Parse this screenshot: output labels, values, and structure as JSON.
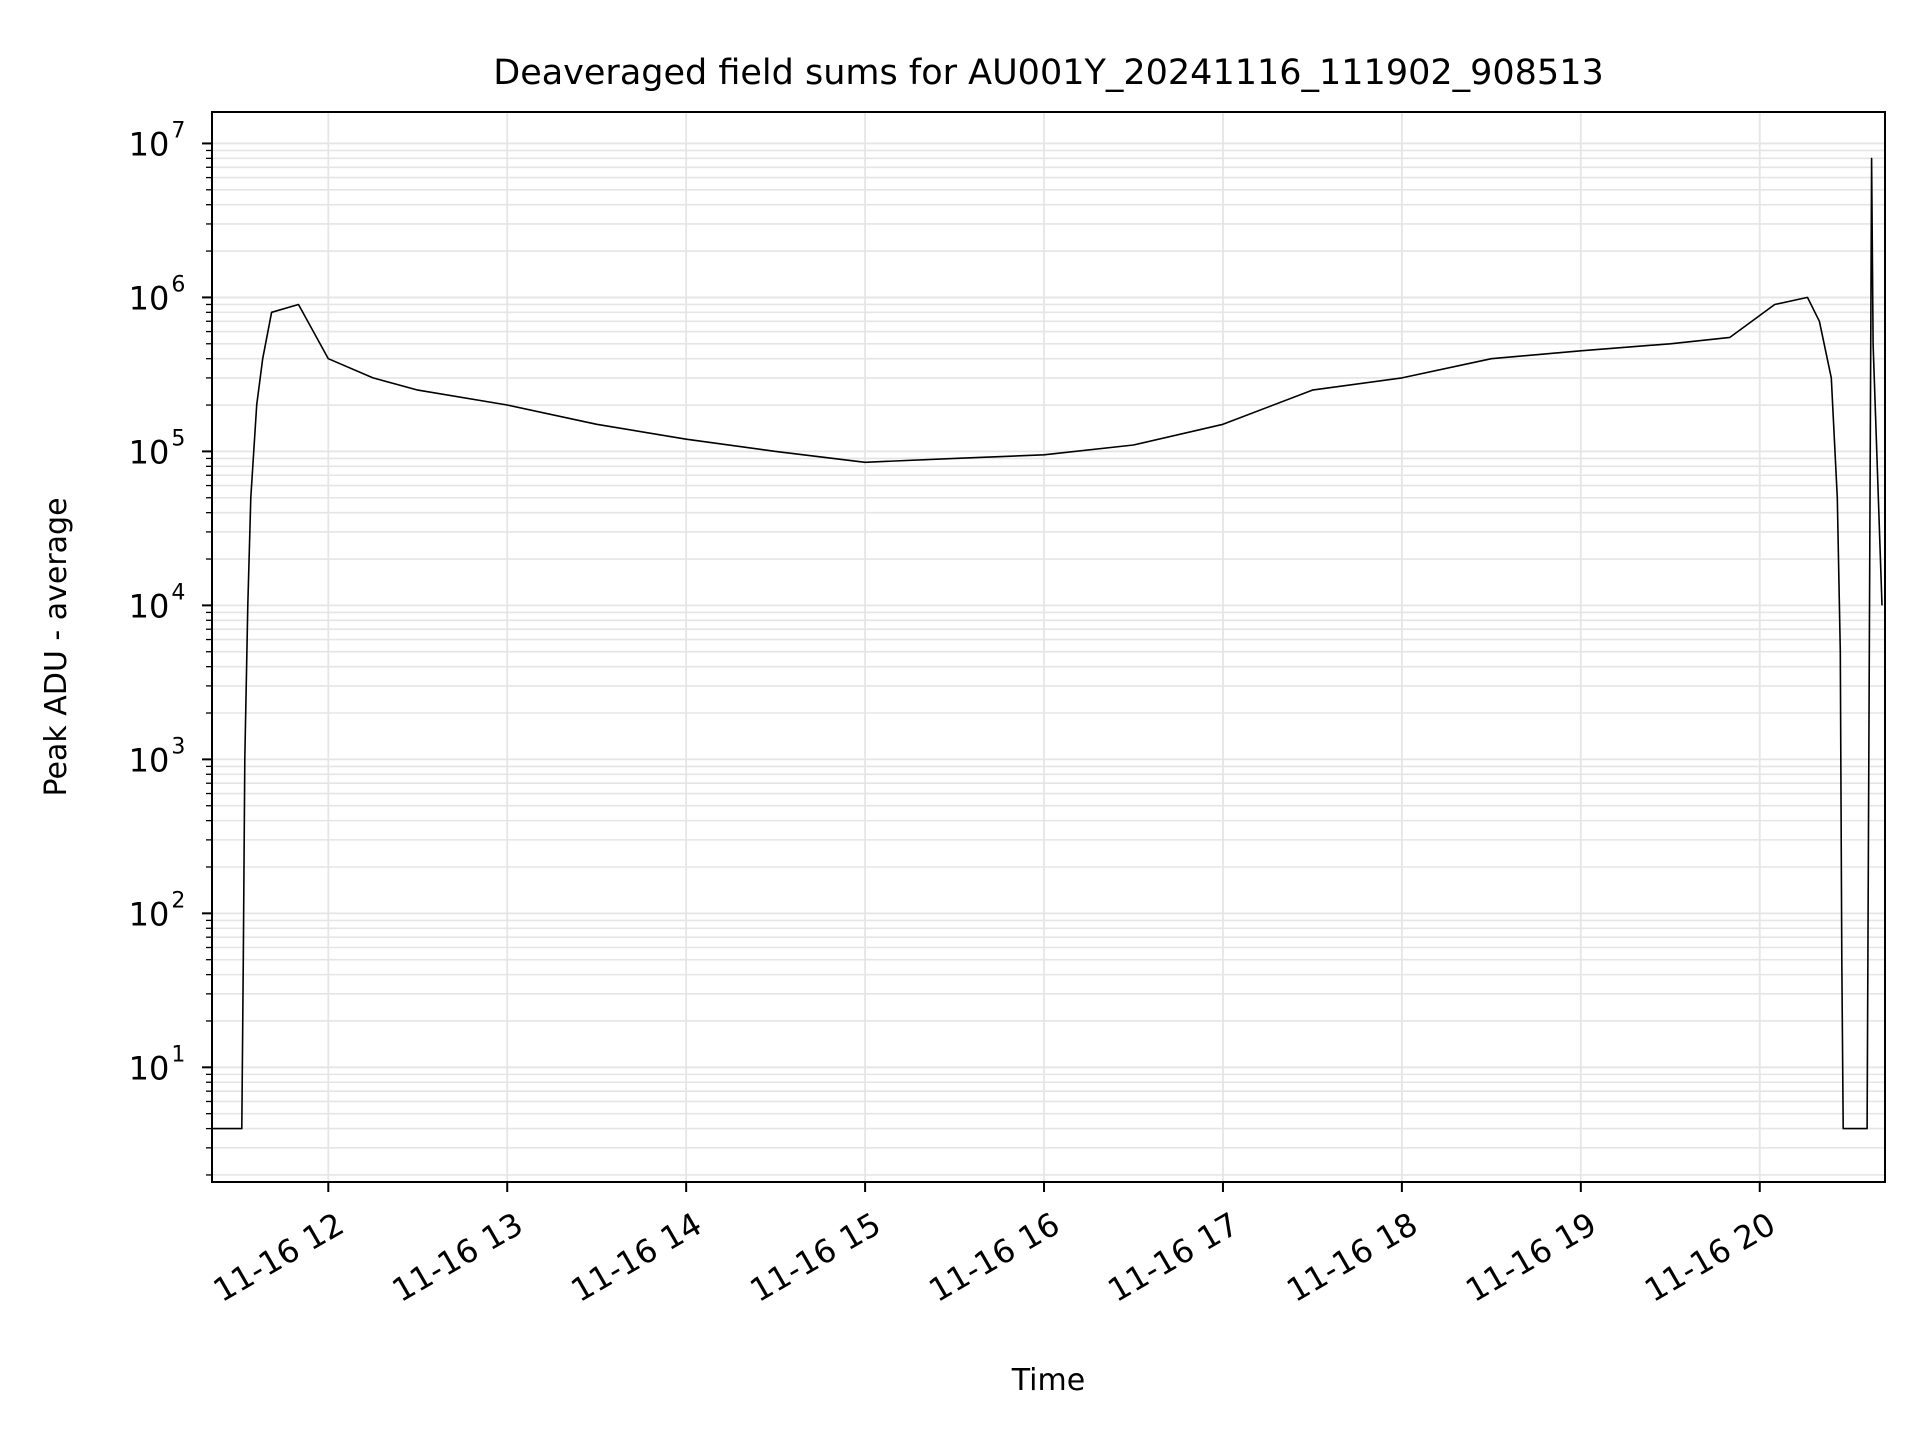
{
  "chart_data": {
    "type": "line",
    "title": "Deaveraged field sums for AU001Y_20241116_111902_908513",
    "xlabel": "Time",
    "ylabel": "Peak ADU - average",
    "yscale": "log",
    "ylim": [
      1.8,
      16000000
    ],
    "xlim": [
      "2024-11-16T11:21:00",
      "2024-11-16T20:42:00"
    ],
    "grid": true,
    "grid_color": "#e5e5e5",
    "line_color": "#000000",
    "x_ticks": [
      {
        "t": "2024-11-16T12:00:00",
        "label": "11-16 12"
      },
      {
        "t": "2024-11-16T13:00:00",
        "label": "11-16 13"
      },
      {
        "t": "2024-11-16T14:00:00",
        "label": "11-16 14"
      },
      {
        "t": "2024-11-16T15:00:00",
        "label": "11-16 15"
      },
      {
        "t": "2024-11-16T16:00:00",
        "label": "11-16 16"
      },
      {
        "t": "2024-11-16T17:00:00",
        "label": "11-16 17"
      },
      {
        "t": "2024-11-16T18:00:00",
        "label": "11-16 18"
      },
      {
        "t": "2024-11-16T19:00:00",
        "label": "11-16 19"
      },
      {
        "t": "2024-11-16T20:00:00",
        "label": "11-16 20"
      }
    ],
    "y_ticks": [
      {
        "value": 10,
        "base": "10",
        "exp": "1"
      },
      {
        "value": 100,
        "base": "10",
        "exp": "2"
      },
      {
        "value": 1000,
        "base": "10",
        "exp": "3"
      },
      {
        "value": 10000,
        "base": "10",
        "exp": "4"
      },
      {
        "value": 100000,
        "base": "10",
        "exp": "5"
      },
      {
        "value": 1000000,
        "base": "10",
        "exp": "6"
      },
      {
        "value": 10000000,
        "base": "10",
        "exp": "7"
      }
    ],
    "series": [
      {
        "points": [
          [
            "2024-11-16T11:21:00",
            4
          ],
          [
            "2024-11-16T11:31:00",
            4
          ],
          [
            "2024-11-16T11:31:30",
            50
          ],
          [
            "2024-11-16T11:32:00",
            1000
          ],
          [
            "2024-11-16T11:33:00",
            10000
          ],
          [
            "2024-11-16T11:34:00",
            50000
          ],
          [
            "2024-11-16T11:36:00",
            200000
          ],
          [
            "2024-11-16T11:38:00",
            400000
          ],
          [
            "2024-11-16T11:41:00",
            800000
          ],
          [
            "2024-11-16T11:50:00",
            900000
          ],
          [
            "2024-11-16T12:00:00",
            400000
          ],
          [
            "2024-11-16T12:15:00",
            300000
          ],
          [
            "2024-11-16T12:30:00",
            250000
          ],
          [
            "2024-11-16T13:00:00",
            200000
          ],
          [
            "2024-11-16T13:30:00",
            150000
          ],
          [
            "2024-11-16T14:00:00",
            120000
          ],
          [
            "2024-11-16T14:30:00",
            100000
          ],
          [
            "2024-11-16T15:00:00",
            85000
          ],
          [
            "2024-11-16T15:30:00",
            90000
          ],
          [
            "2024-11-16T16:00:00",
            95000
          ],
          [
            "2024-11-16T16:30:00",
            110000
          ],
          [
            "2024-11-16T17:00:00",
            150000
          ],
          [
            "2024-11-16T17:30:00",
            250000
          ],
          [
            "2024-11-16T18:00:00",
            300000
          ],
          [
            "2024-11-16T18:30:00",
            400000
          ],
          [
            "2024-11-16T19:00:00",
            450000
          ],
          [
            "2024-11-16T19:30:00",
            500000
          ],
          [
            "2024-11-16T19:50:00",
            550000
          ],
          [
            "2024-11-16T20:05:00",
            900000
          ],
          [
            "2024-11-16T20:16:00",
            1000000
          ],
          [
            "2024-11-16T20:20:00",
            700000
          ],
          [
            "2024-11-16T20:24:00",
            300000
          ],
          [
            "2024-11-16T20:26:00",
            50000
          ],
          [
            "2024-11-16T20:27:00",
            5000
          ],
          [
            "2024-11-16T20:27:30",
            50
          ],
          [
            "2024-11-16T20:28:00",
            4
          ],
          [
            "2024-11-16T20:36:00",
            4
          ],
          [
            "2024-11-16T20:37:30",
            8000000
          ],
          [
            "2024-11-16T20:38:00",
            500000
          ],
          [
            "2024-11-16T20:41:00",
            10000
          ]
        ]
      }
    ]
  }
}
